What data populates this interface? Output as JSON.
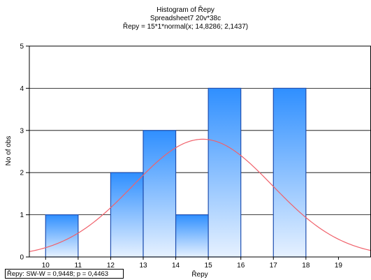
{
  "chart_data": {
    "type": "bar",
    "title": "Histogram of Řepy",
    "subtitle": "Spreadsheet7 20v*38c",
    "formula": "Řepy = 15*1*normal(x; 14,8286; 2,1437)",
    "xlabel": "Řepy",
    "ylabel": "No of obs",
    "xlim": [
      9.5,
      20
    ],
    "ylim": [
      0,
      5
    ],
    "x_ticks": [
      "10",
      "11",
      "12",
      "13",
      "14",
      "15",
      "16",
      "17",
      "18",
      "19"
    ],
    "y_ticks": [
      "0",
      "1",
      "2",
      "3",
      "4",
      "5"
    ],
    "bins": [
      {
        "from": 10,
        "to": 11,
        "count": 1
      },
      {
        "from": 11,
        "to": 12,
        "count": 0
      },
      {
        "from": 12,
        "to": 13,
        "count": 2
      },
      {
        "from": 13,
        "to": 14,
        "count": 3
      },
      {
        "from": 14,
        "to": 15,
        "count": 1
      },
      {
        "from": 15,
        "to": 16,
        "count": 4
      },
      {
        "from": 16,
        "to": 17,
        "count": 0
      },
      {
        "from": 17,
        "to": 18,
        "count": 4
      }
    ],
    "normal_curve": {
      "n": 15,
      "bin_width": 1,
      "mean": 14.8286,
      "sd": 2.1437,
      "color": "#f0606a"
    },
    "grid": true,
    "legend": "none",
    "stat_label": "Řepy:  SW-W = 0,9448; p = 0,4463",
    "colors": {
      "bar_top": "#2f8fff",
      "bar_bottom": "#e6f1ff",
      "bar_edge": "#1f4fb0",
      "axis": "#000000"
    }
  }
}
